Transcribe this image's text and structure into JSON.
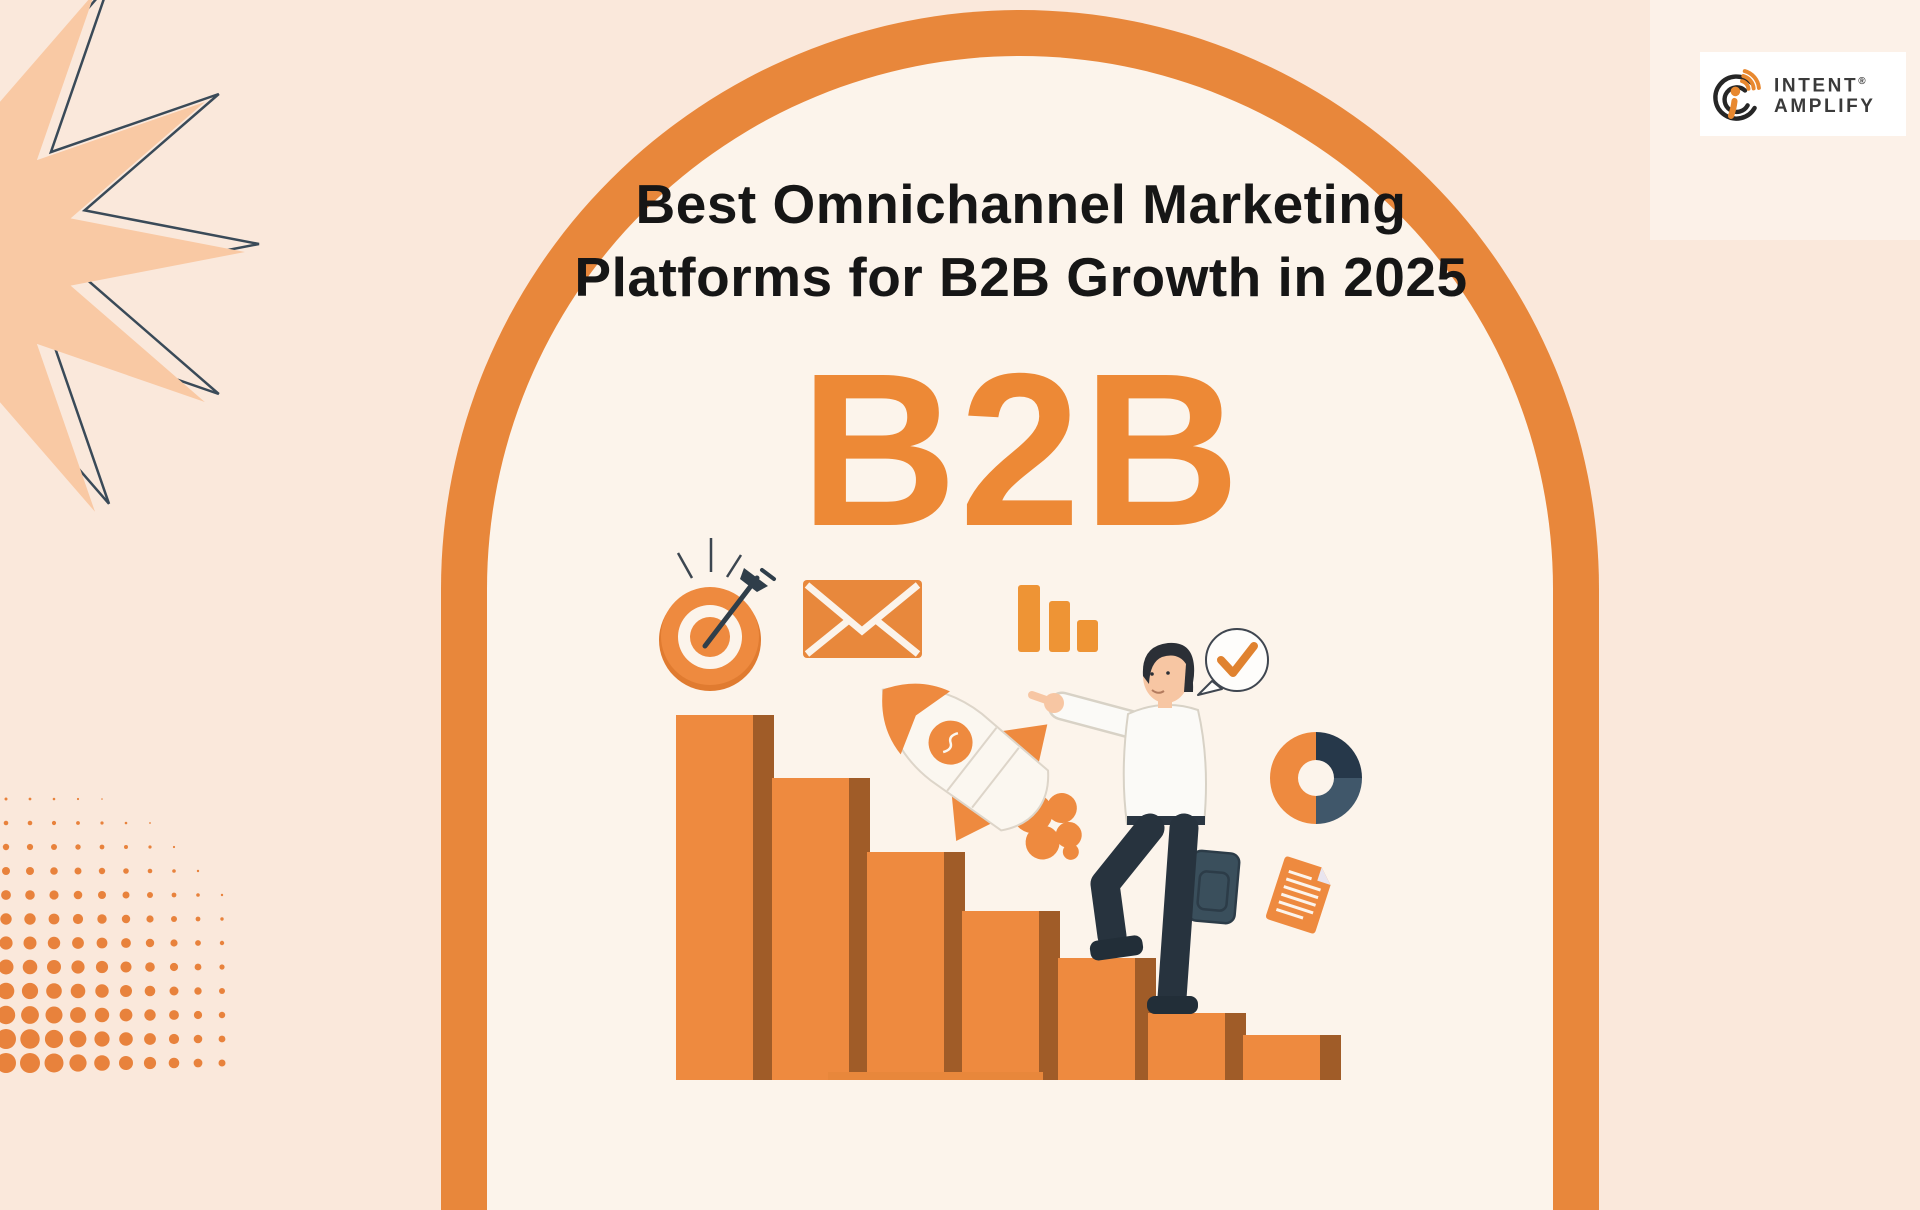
{
  "header": {
    "title_line1": "Best Omnichannel Marketing",
    "title_line2": "Platforms for B2B Growth in 2025"
  },
  "hero": {
    "big_label": "B2B"
  },
  "logo": {
    "line1": "INTENT",
    "line2": "AMPLIFY",
    "registered_mark": "®"
  },
  "colors": {
    "outer_bg": "#FAE8DB",
    "inner_bg": "#FCF4EB",
    "orange": "#E8873B",
    "deep_orange": "#ED8936",
    "icon_orange": "#EE8A3F",
    "dot_orange": "#E8823C",
    "bar_shadow": "#A05C28",
    "peach_star": "#F9C9A4",
    "navy": "#2B3B4A",
    "dark_slate": "#26384A",
    "mid_slate": "#40576A",
    "skin": "#F7C6A3",
    "shirt_white": "#FBFAF7",
    "line_grey": "#D8D2C6"
  },
  "icons": [
    {
      "name": "target-icon"
    },
    {
      "name": "envelope-icon"
    },
    {
      "name": "bar-chart-icon"
    },
    {
      "name": "rocket-icon"
    },
    {
      "name": "check-bubble-icon"
    },
    {
      "name": "donut-chart-icon"
    },
    {
      "name": "document-icon"
    },
    {
      "name": "stairs-bars"
    },
    {
      "name": "starburst-shape"
    },
    {
      "name": "halftone-dots"
    },
    {
      "name": "intent-amplify-logo-icon"
    }
  ]
}
